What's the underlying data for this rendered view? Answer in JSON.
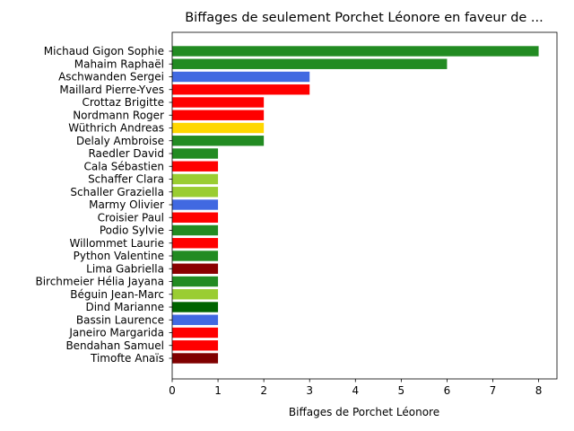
{
  "chart_data": {
    "type": "bar",
    "orientation": "horizontal",
    "title": "Biffages de seulement Porchet Léonore en faveur de ...",
    "xlabel": "Biffages de Porchet Léonore",
    "ylabel": "",
    "xlim": [
      0,
      8.4
    ],
    "xticks": [
      "0",
      "1",
      "2",
      "3",
      "4",
      "5",
      "6",
      "7",
      "8"
    ],
    "grid": false,
    "categories": [
      "Michaud Gigon Sophie",
      "Mahaim Raphaël",
      "Aschwanden Sergei",
      "Maillard Pierre-Yves",
      "Crottaz Brigitte",
      "Nordmann Roger",
      "Wüthrich Andreas",
      "Delaly Ambroise",
      "Raedler David",
      "Cala Sébastien",
      "Schaffer Clara",
      "Schaller Graziella",
      "Marmy Olivier",
      "Croisier Paul",
      "Podio Sylvie",
      "Willommet Laurie",
      "Python Valentine",
      "Lima Gabriella",
      "Birchmeier Hélia Jayana",
      "Béguin Jean-Marc",
      "Dind Marianne",
      "Bassin Laurence",
      "Janeiro Margarida",
      "Bendahan Samuel",
      "Timofte Anaïs"
    ],
    "values": [
      8,
      6,
      3,
      3,
      2,
      2,
      2,
      2,
      1,
      1,
      1,
      1,
      1,
      1,
      1,
      1,
      1,
      1,
      1,
      1,
      1,
      1,
      1,
      1,
      1
    ],
    "colors": [
      "#228b22",
      "#228b22",
      "#4169e1",
      "#ff0000",
      "#ff0000",
      "#ff0000",
      "#ffd700",
      "#228b22",
      "#228b22",
      "#ff0000",
      "#9acd32",
      "#9acd32",
      "#4169e1",
      "#ff0000",
      "#228b22",
      "#ff0000",
      "#228b22",
      "#8b0000",
      "#228b22",
      "#9acd32",
      "#006400",
      "#4169e1",
      "#ff0000",
      "#ff0000",
      "#800000"
    ]
  }
}
